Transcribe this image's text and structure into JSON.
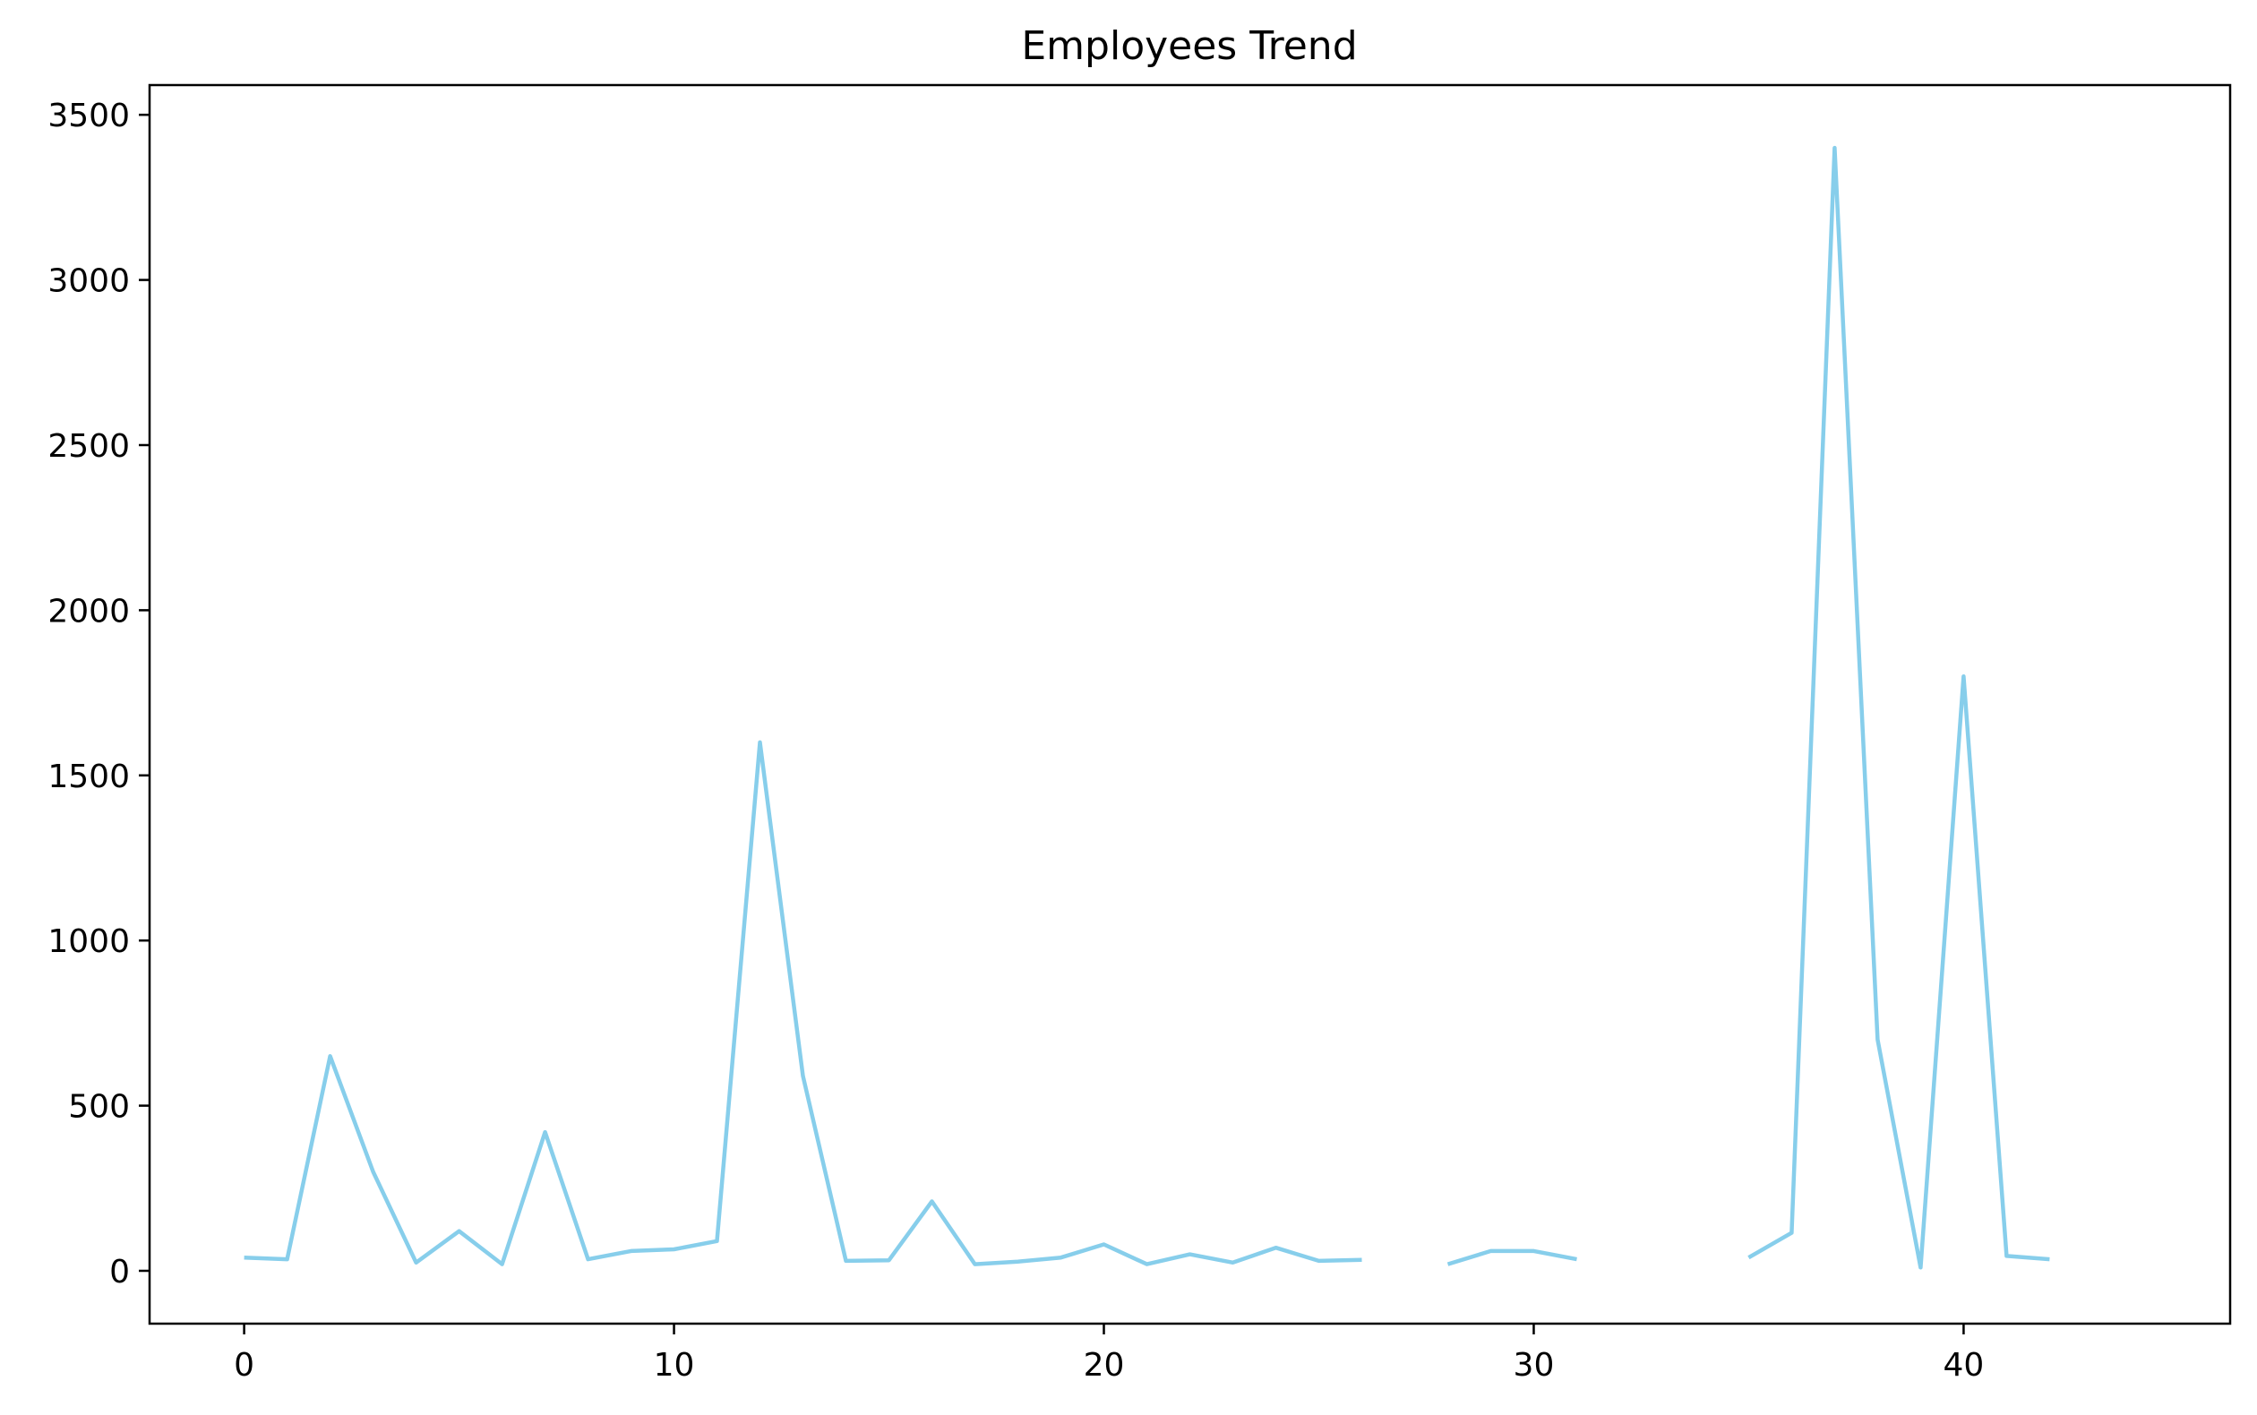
{
  "chart_data": {
    "type": "line",
    "title": "Employees Trend",
    "xlabel": "",
    "ylabel": "",
    "xlim": [
      -2.2,
      46.2
    ],
    "ylim": [
      -160,
      3590
    ],
    "xticks": [
      0,
      10,
      20,
      30,
      40
    ],
    "yticks": [
      0,
      500,
      1000,
      1500,
      2000,
      2500,
      3000,
      3500
    ],
    "grid": false,
    "legend": "none",
    "line_color": "#87CEEB",
    "series": [
      {
        "x": [
          0,
          1,
          2,
          3,
          4,
          5,
          6,
          7,
          8,
          9,
          10,
          11,
          12,
          13,
          14,
          15,
          16,
          17,
          18,
          19,
          20,
          21,
          22,
          23,
          24,
          25,
          26,
          27,
          28,
          29,
          30,
          31,
          32,
          33,
          34,
          35,
          36,
          37,
          38,
          39,
          40,
          41,
          42
        ],
        "values": [
          40,
          35,
          650,
          300,
          25,
          120,
          20,
          420,
          35,
          60,
          65,
          90,
          1600,
          590,
          30,
          32,
          210,
          20,
          28,
          40,
          80,
          20,
          50,
          25,
          70,
          30,
          33,
          null,
          20,
          60,
          60,
          35,
          null,
          null,
          null,
          40,
          115,
          3400,
          700,
          10,
          1800,
          45,
          35
        ]
      }
    ]
  }
}
